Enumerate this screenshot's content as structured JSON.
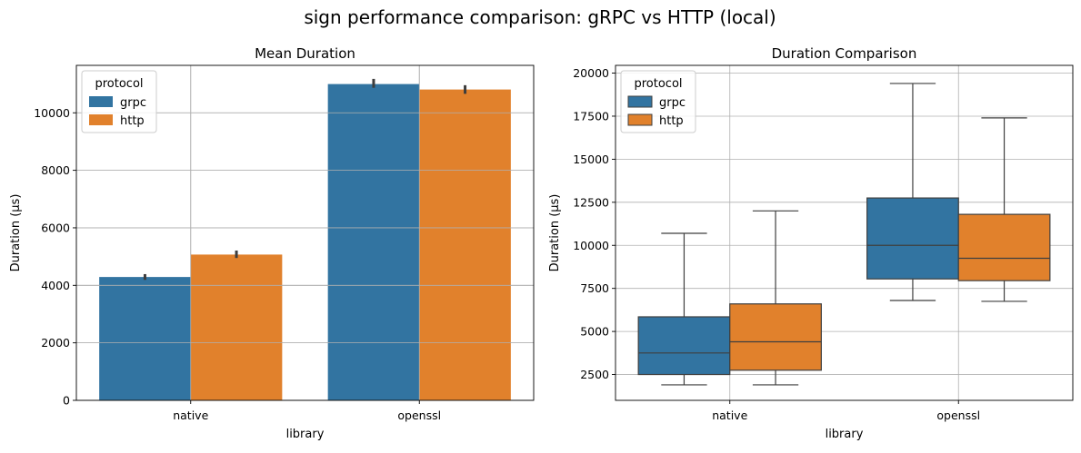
{
  "figure_title": "sign performance comparison: gRPC vs HTTP (local)",
  "colors": {
    "grpc": "#3274a1",
    "http": "#e1812c",
    "grid": "#b0b0b0",
    "axis": "#000000",
    "error": "#3d3d3d"
  },
  "chart_data": [
    {
      "type": "bar",
      "title": "Mean Duration",
      "xlabel": "library",
      "ylabel": "Duration (µs)",
      "categories": [
        "native",
        "openssl"
      ],
      "ylim": [
        0,
        11650
      ],
      "yticks": [
        0,
        2000,
        4000,
        6000,
        8000,
        10000
      ],
      "ytick_labels": [
        "0",
        "2000",
        "4000",
        "6000",
        "8000",
        "10000"
      ],
      "grid": true,
      "legend": {
        "title": "protocol",
        "placement": "upper left",
        "entries": [
          "grpc",
          "http"
        ]
      },
      "series": [
        {
          "name": "grpc",
          "values": [
            4290,
            11000
          ],
          "error_low": [
            4190,
            10870
          ],
          "error_high": [
            4390,
            11180
          ]
        },
        {
          "name": "http",
          "values": [
            5070,
            10810
          ],
          "error_low": [
            4950,
            10660
          ],
          "error_high": [
            5210,
            10960
          ]
        }
      ]
    },
    {
      "type": "box",
      "title": "Duration Comparison",
      "xlabel": "library",
      "ylabel": "Duration (µs)",
      "categories": [
        "native",
        "openssl"
      ],
      "ylim": [
        1000,
        20450
      ],
      "yticks": [
        2500,
        5000,
        7500,
        10000,
        12500,
        15000,
        17500,
        20000
      ],
      "ytick_labels": [
        "2500",
        "5000",
        "7500",
        "10000",
        "12500",
        "15000",
        "17500",
        "20000"
      ],
      "grid": true,
      "legend": {
        "title": "protocol",
        "placement": "upper left",
        "entries": [
          "grpc",
          "http"
        ]
      },
      "series": [
        {
          "name": "grpc",
          "boxes": [
            {
              "whislo": 1900,
              "q1": 2500,
              "med": 3750,
              "q3": 5850,
              "whishi": 10700
            },
            {
              "whislo": 6800,
              "q1": 8050,
              "med": 10000,
              "q3": 12750,
              "whishi": 19400
            }
          ]
        },
        {
          "name": "http",
          "boxes": [
            {
              "whislo": 1900,
              "q1": 2750,
              "med": 4400,
              "q3": 6600,
              "whishi": 12000
            },
            {
              "whislo": 6750,
              "q1": 7950,
              "med": 9250,
              "q3": 11800,
              "whishi": 17400
            }
          ]
        }
      ]
    }
  ]
}
